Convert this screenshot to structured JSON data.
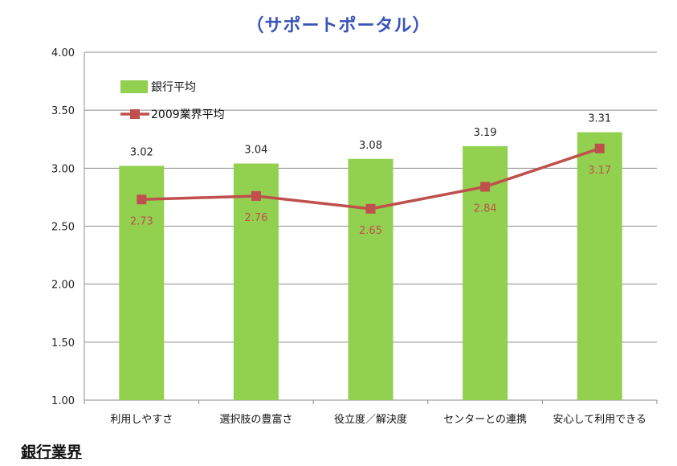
{
  "page": {
    "title": "（サポートポータル）",
    "footer_label": "銀行業界"
  },
  "chart_data": {
    "type": "bar",
    "categories": [
      "利用しやすさ",
      "選択肢の豊富さ",
      "役立度／解決度",
      "センターとの連携",
      "安心して利用できる"
    ],
    "ylim": [
      1.0,
      4.0
    ],
    "yticks": [
      "1.00",
      "1.50",
      "2.00",
      "2.50",
      "3.00",
      "3.50",
      "4.00"
    ],
    "grid": true,
    "legend_position": "top-left",
    "series": [
      {
        "name": "銀行平均",
        "type": "bar",
        "color": "#92d050",
        "values": [
          3.02,
          3.04,
          3.08,
          3.19,
          3.31
        ],
        "labels": [
          "3.02",
          "3.04",
          "3.08",
          "3.19",
          "3.31"
        ]
      },
      {
        "name": "2009業界平均",
        "type": "line",
        "color": "#c0504d",
        "values": [
          2.73,
          2.76,
          2.65,
          2.84,
          3.17
        ],
        "labels": [
          "2.73",
          "2.76",
          "2.65",
          "2.84",
          "3.17"
        ]
      }
    ]
  }
}
